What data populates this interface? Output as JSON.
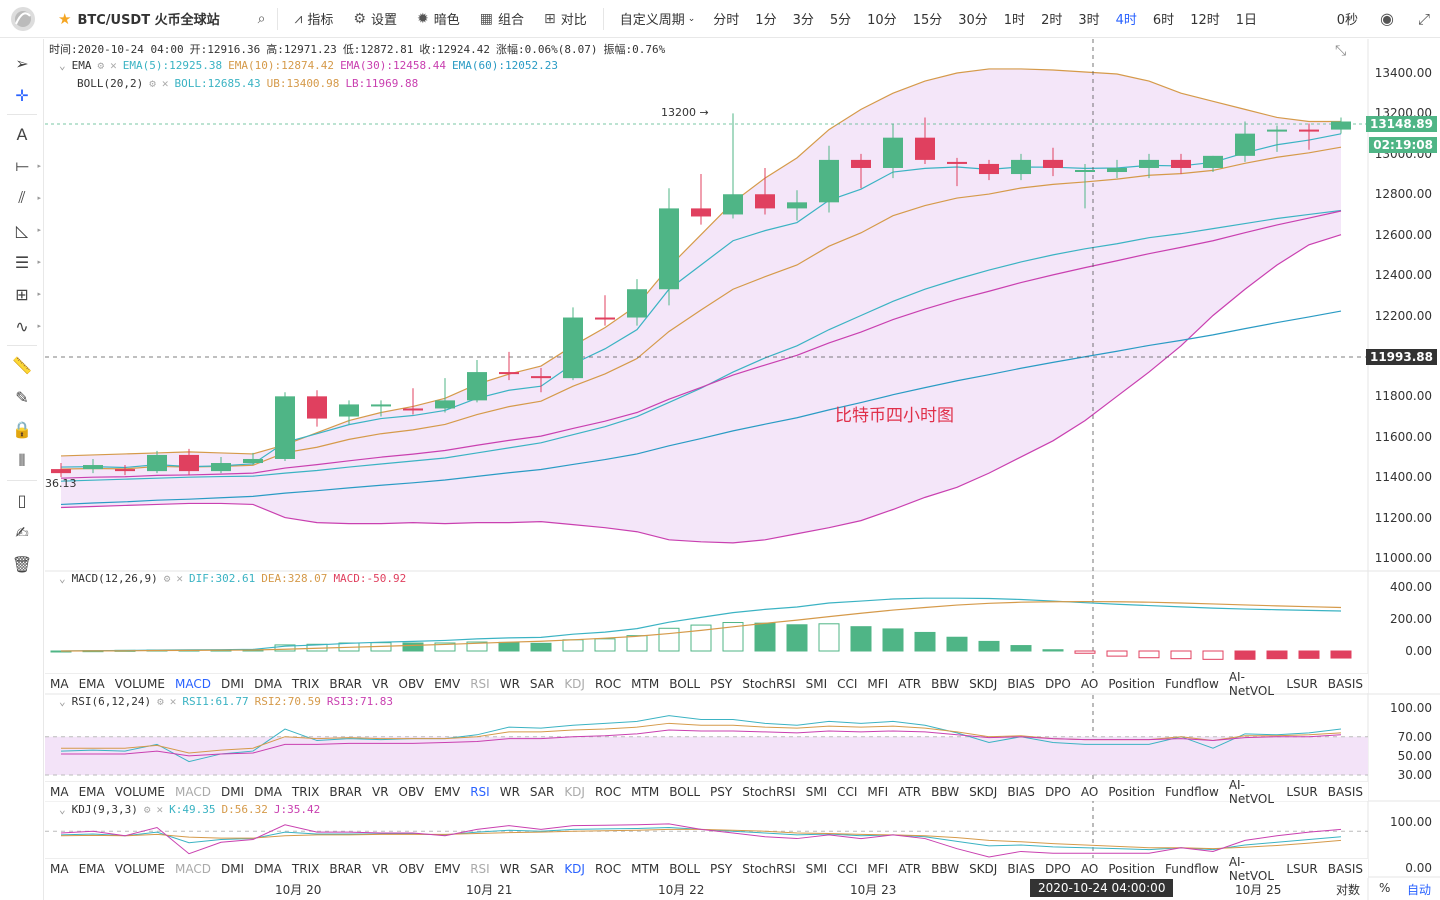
{
  "toolbar": {
    "symbol": "BTC/USDT 火币全球站",
    "buttons": [
      "指标",
      "设置",
      "暗色",
      "组合",
      "对比"
    ],
    "custom_period": "自定义周期",
    "periods": [
      "分时",
      "1分",
      "3分",
      "5分",
      "10分",
      "15分",
      "30分",
      "1时",
      "2时",
      "3时",
      "4时",
      "6时",
      "12时",
      "1日"
    ],
    "active_period": "4时",
    "countdown": "0秒"
  },
  "ohlc": {
    "time": "时间:2020-10-24 04:00",
    "open": "开:12916.36",
    "high": "高:12971.23",
    "low": "低:12872.81",
    "close": "收:12924.42",
    "change": "涨幅:0.06%(8.07)",
    "amplitude": "振幅:0.76%"
  },
  "ema_legend": {
    "name": "EMA",
    "ema5": "EMA(5):12925.38",
    "ema10": "EMA(10):12874.42",
    "ema30": "EMA(30):12458.44",
    "ema60": "EMA(60):12052.23"
  },
  "boll_legend": {
    "name": "BOLL(20,2)",
    "boll": "BOLL:12685.43",
    "ub": "UB:13400.98",
    "lb": "LB:11969.88"
  },
  "macd_legend": {
    "name": "MACD(12,26,9)",
    "dif": "DIF:302.61",
    "dea": "DEA:328.07",
    "macd": "MACD:-50.92"
  },
  "rsi_legend": {
    "name": "RSI(6,12,24)",
    "rsi1": "RSI1:61.77",
    "rsi2": "RSI2:70.59",
    "rsi3": "RSI3:71.83"
  },
  "kdj_legend": {
    "name": "KDJ(9,3,3)",
    "k": "K:49.35",
    "d": "D:56.32",
    "j": "J:35.42"
  },
  "indicators": [
    "MA",
    "EMA",
    "VOLUME",
    "MACD",
    "DMI",
    "DMA",
    "TRIX",
    "BRAR",
    "VR",
    "OBV",
    "EMV",
    "RSI",
    "WR",
    "SAR",
    "KDJ",
    "ROC",
    "MTM",
    "BOLL",
    "PSY",
    "StochRSI",
    "SMI",
    "CCI",
    "MFI",
    "ATR",
    "BBW",
    "SKDJ",
    "BIAS",
    "DPO",
    "AO",
    "Position",
    "Fundflow",
    "AI-NetVOL",
    "LSUR",
    "BASIS"
  ],
  "price_axis": [
    "13400.00",
    "13200.00",
    "13000.00",
    "12800.00",
    "12600.00",
    "12400.00",
    "12200.00",
    "12000.00",
    "11800.00",
    "11600.00",
    "11400.00",
    "11200.00",
    "11000.00"
  ],
  "macd_axis": [
    "400.00",
    "200.00",
    "0.00"
  ],
  "rsi_axis": [
    "100.00",
    "70.00",
    "50.00",
    "30.00"
  ],
  "kdj_axis": [
    "100.00",
    "0.00"
  ],
  "last_price": "13148.89",
  "countdown_label": "02:19:08",
  "crosshair_price": "11993.88",
  "crosshair_time": "2020-10-24 04:00:00",
  "high_marker": "13200",
  "left_cut_label": "36.13",
  "watermark": "比特币四小时图",
  "x_axis": [
    "10月 20",
    "10月 21",
    "10月 22",
    "10月 23",
    "10月 25"
  ],
  "bottom_right": {
    "log": "对数",
    "pct": "%",
    "auto": "自动"
  },
  "colors": {
    "up": "#4fb586",
    "down": "#e0405f",
    "accent": "#2962ff",
    "boll_fill": "#f3e3f8"
  },
  "chart_data": {
    "type": "candlestick",
    "candles": [
      [
        11440,
        11420,
        11470,
        11400
      ],
      [
        11440,
        11460,
        11490,
        11420
      ],
      [
        11440,
        11430,
        11460,
        11410
      ],
      [
        11430,
        11510,
        11530,
        11420
      ],
      [
        11510,
        11430,
        11540,
        11410
      ],
      [
        11430,
        11470,
        11500,
        11420
      ],
      [
        11470,
        11490,
        11520,
        11460
      ],
      [
        11490,
        11800,
        11820,
        11480
      ],
      [
        11800,
        11690,
        11830,
        11650
      ],
      [
        11700,
        11760,
        11780,
        11660
      ],
      [
        11750,
        11760,
        11780,
        11700
      ],
      [
        11740,
        11730,
        11840,
        11710
      ],
      [
        11740,
        11780,
        11890,
        11720
      ],
      [
        11780,
        11920,
        11980,
        11770
      ],
      [
        11920,
        11910,
        12020,
        11880
      ],
      [
        11900,
        11890,
        11940,
        11820
      ],
      [
        11890,
        12190,
        12240,
        11880
      ],
      [
        12190,
        12180,
        12300,
        12150
      ],
      [
        12190,
        12330,
        12380,
        12150
      ],
      [
        12330,
        12730,
        12830,
        12250
      ],
      [
        12730,
        12690,
        12900,
        12650
      ],
      [
        12700,
        12800,
        13200,
        12680
      ],
      [
        12800,
        12730,
        12930,
        12700
      ],
      [
        12730,
        12760,
        12820,
        12670
      ],
      [
        12760,
        12970,
        13040,
        12710
      ],
      [
        12970,
        12930,
        13000,
        12830
      ],
      [
        12930,
        13080,
        13150,
        12880
      ],
      [
        13080,
        12970,
        13180,
        12950
      ],
      [
        12960,
        12950,
        12980,
        12840
      ],
      [
        12950,
        12900,
        12970,
        12870
      ],
      [
        12900,
        12970,
        13000,
        12870
      ],
      [
        12970,
        12930,
        13030,
        12890
      ],
      [
        12920,
        12920,
        12950,
        12730
      ],
      [
        12910,
        12930,
        12970,
        12880
      ],
      [
        12930,
        12970,
        13000,
        12880
      ],
      [
        12970,
        12930,
        13000,
        12900
      ],
      [
        12930,
        12990,
        12990,
        12910
      ],
      [
        12990,
        13100,
        13160,
        12960
      ],
      [
        13110,
        13120,
        13140,
        13010
      ],
      [
        13120,
        13110,
        13150,
        13020
      ],
      [
        13120,
        13160,
        13180,
        13100
      ]
    ],
    "ema5": [
      11450,
      11452,
      11448,
      11462,
      11452,
      11456,
      11466,
      11572,
      11615,
      11660,
      11690,
      11705,
      11730,
      11790,
      11830,
      11850,
      11960,
      12035,
      12130,
      12330,
      12450,
      12570,
      12620,
      12660,
      12770,
      12825,
      12910,
      12928,
      12935,
      12923,
      12935,
      12934,
      12928,
      12930,
      12943,
      12940,
      12958,
      13005,
      13045,
      13068,
      13099
    ],
    "ema10": [
      11440,
      11443,
      11441,
      11453,
      11450,
      11453,
      11459,
      11521,
      11548,
      11587,
      11615,
      11634,
      11661,
      11710,
      11749,
      11776,
      11850,
      11911,
      11987,
      12121,
      12227,
      12330,
      12392,
      12450,
      12543,
      12609,
      12694,
      12744,
      12781,
      12801,
      12831,
      12849,
      12861,
      12875,
      12894,
      12902,
      12918,
      12953,
      12983,
      13005,
      13033
    ],
    "ema30": [
      11395,
      11400,
      11402,
      11409,
      11411,
      11415,
      11420,
      11445,
      11462,
      11481,
      11499,
      11514,
      11532,
      11558,
      11582,
      11603,
      11641,
      11677,
      11720,
      11786,
      11844,
      11905,
      11955,
      12003,
      12064,
      12118,
      12180,
      12232,
      12279,
      12320,
      12363,
      12401,
      12437,
      12471,
      12506,
      12537,
      12570,
      12610,
      12648,
      12682,
      12717
    ],
    "ema60": [
      11265,
      11272,
      11278,
      11286,
      11291,
      11298,
      11305,
      11321,
      11333,
      11347,
      11360,
      11372,
      11386,
      11404,
      11422,
      11438,
      11463,
      11487,
      11515,
      11555,
      11591,
      11629,
      11662,
      11694,
      11733,
      11769,
      11808,
      11843,
      11877,
      11907,
      11939,
      11968,
      11996,
      12023,
      12052,
      12077,
      12104,
      12135,
      12165,
      12193,
      12222
    ],
    "boll_ub": [
      11505,
      11510,
      11515,
      11520,
      11525,
      11520,
      11515,
      11560,
      11620,
      11680,
      11720,
      11750,
      11790,
      11860,
      11910,
      11950,
      12050,
      12140,
      12250,
      12440,
      12600,
      12760,
      12880,
      12980,
      13120,
      13220,
      13300,
      13360,
      13400,
      13420,
      13420,
      13415,
      13405,
      13395,
      13360,
      13300,
      13260,
      13220,
      13180,
      13160,
      13160
    ],
    "boll_mid": [
      11380,
      11385,
      11390,
      11395,
      11400,
      11403,
      11405,
      11420,
      11433,
      11450,
      11465,
      11480,
      11495,
      11520,
      11545,
      11570,
      11610,
      11650,
      11700,
      11770,
      11840,
      11920,
      11990,
      12050,
      12130,
      12200,
      12270,
      12330,
      12380,
      12425,
      12465,
      12500,
      12530,
      12555,
      12585,
      12605,
      12630,
      12655,
      12680,
      12700,
      12720
    ],
    "boll_lb": [
      11250,
      11255,
      11260,
      11265,
      11270,
      11270,
      11265,
      11200,
      11175,
      11170,
      11170,
      11175,
      11170,
      11175,
      11175,
      11180,
      11165,
      11150,
      11130,
      11090,
      11080,
      11075,
      11090,
      11120,
      11150,
      11185,
      11240,
      11300,
      11350,
      11420,
      11500,
      11580,
      11680,
      11800,
      11920,
      12050,
      12200,
      12330,
      12450,
      12550,
      12600
    ],
    "macd_dif": [
      0,
      2,
      3,
      6,
      7,
      8,
      10,
      30,
      38,
      48,
      55,
      60,
      66,
      76,
      82,
      85,
      105,
      118,
      140,
      180,
      210,
      240,
      260,
      275,
      300,
      312,
      325,
      330,
      330,
      328,
      322,
      312,
      302,
      292,
      284,
      276,
      268,
      262,
      258,
      254,
      250
    ],
    "macd_dea": [
      0,
      1,
      1,
      3,
      4,
      5,
      6,
      11,
      17,
      23,
      29,
      35,
      41,
      48,
      55,
      61,
      70,
      80,
      92,
      109,
      129,
      151,
      173,
      193,
      215,
      236,
      256,
      272,
      287,
      298,
      305,
      308,
      309,
      308,
      305,
      300,
      294,
      288,
      282,
      277,
      272
    ],
    "rsi1": [
      55,
      56,
      55,
      62,
      44,
      52,
      55,
      78,
      66,
      68,
      67,
      68,
      68,
      72,
      80,
      79,
      82,
      84,
      86,
      92,
      88,
      88,
      84,
      82,
      86,
      84,
      86,
      82,
      74,
      64,
      70,
      64,
      62,
      62,
      62,
      70,
      58,
      73,
      72,
      74,
      78
    ],
    "rsi2": [
      58,
      58,
      58,
      61,
      53,
      56,
      58,
      70,
      68,
      69,
      68,
      68,
      68,
      70,
      75,
      75,
      77,
      78,
      80,
      84,
      82,
      82,
      80,
      79,
      81,
      80,
      81,
      79,
      75,
      70,
      71,
      68,
      67,
      67,
      67,
      70,
      66,
      71,
      71,
      72,
      74
    ],
    "rsi3": [
      52,
      52,
      52,
      55,
      50,
      52,
      53,
      62,
      62,
      63,
      63,
      63,
      64,
      65,
      68,
      68,
      70,
      71,
      73,
      77,
      76,
      76,
      75,
      74,
      76,
      75,
      76,
      75,
      72,
      69,
      70,
      68,
      67,
      67,
      67,
      68,
      66,
      69,
      70,
      70,
      72
    ],
    "kdj_k": [
      72,
      74,
      70,
      78,
      55,
      62,
      64,
      78,
      74,
      74,
      74,
      74,
      72,
      78,
      82,
      80,
      84,
      85,
      86,
      88,
      84,
      80,
      76,
      72,
      74,
      70,
      72,
      68,
      58,
      48,
      50,
      46,
      44,
      42,
      40,
      44,
      40,
      50,
      56,
      62,
      68
    ],
    "kdj_d": [
      70,
      71,
      70,
      73,
      67,
      65,
      65,
      70,
      72,
      72,
      73,
      73,
      73,
      75,
      77,
      78,
      80,
      81,
      82,
      84,
      84,
      82,
      80,
      76,
      75,
      73,
      72,
      70,
      66,
      60,
      57,
      53,
      50,
      47,
      44,
      44,
      42,
      45,
      49,
      54,
      60
    ],
    "kdj_j": [
      76,
      80,
      70,
      88,
      31,
      56,
      62,
      94,
      78,
      78,
      76,
      76,
      70,
      84,
      92,
      84,
      92,
      93,
      94,
      96,
      84,
      76,
      68,
      64,
      72,
      64,
      72,
      64,
      42,
      24,
      36,
      32,
      32,
      32,
      32,
      44,
      36,
      60,
      70,
      78,
      84
    ]
  }
}
